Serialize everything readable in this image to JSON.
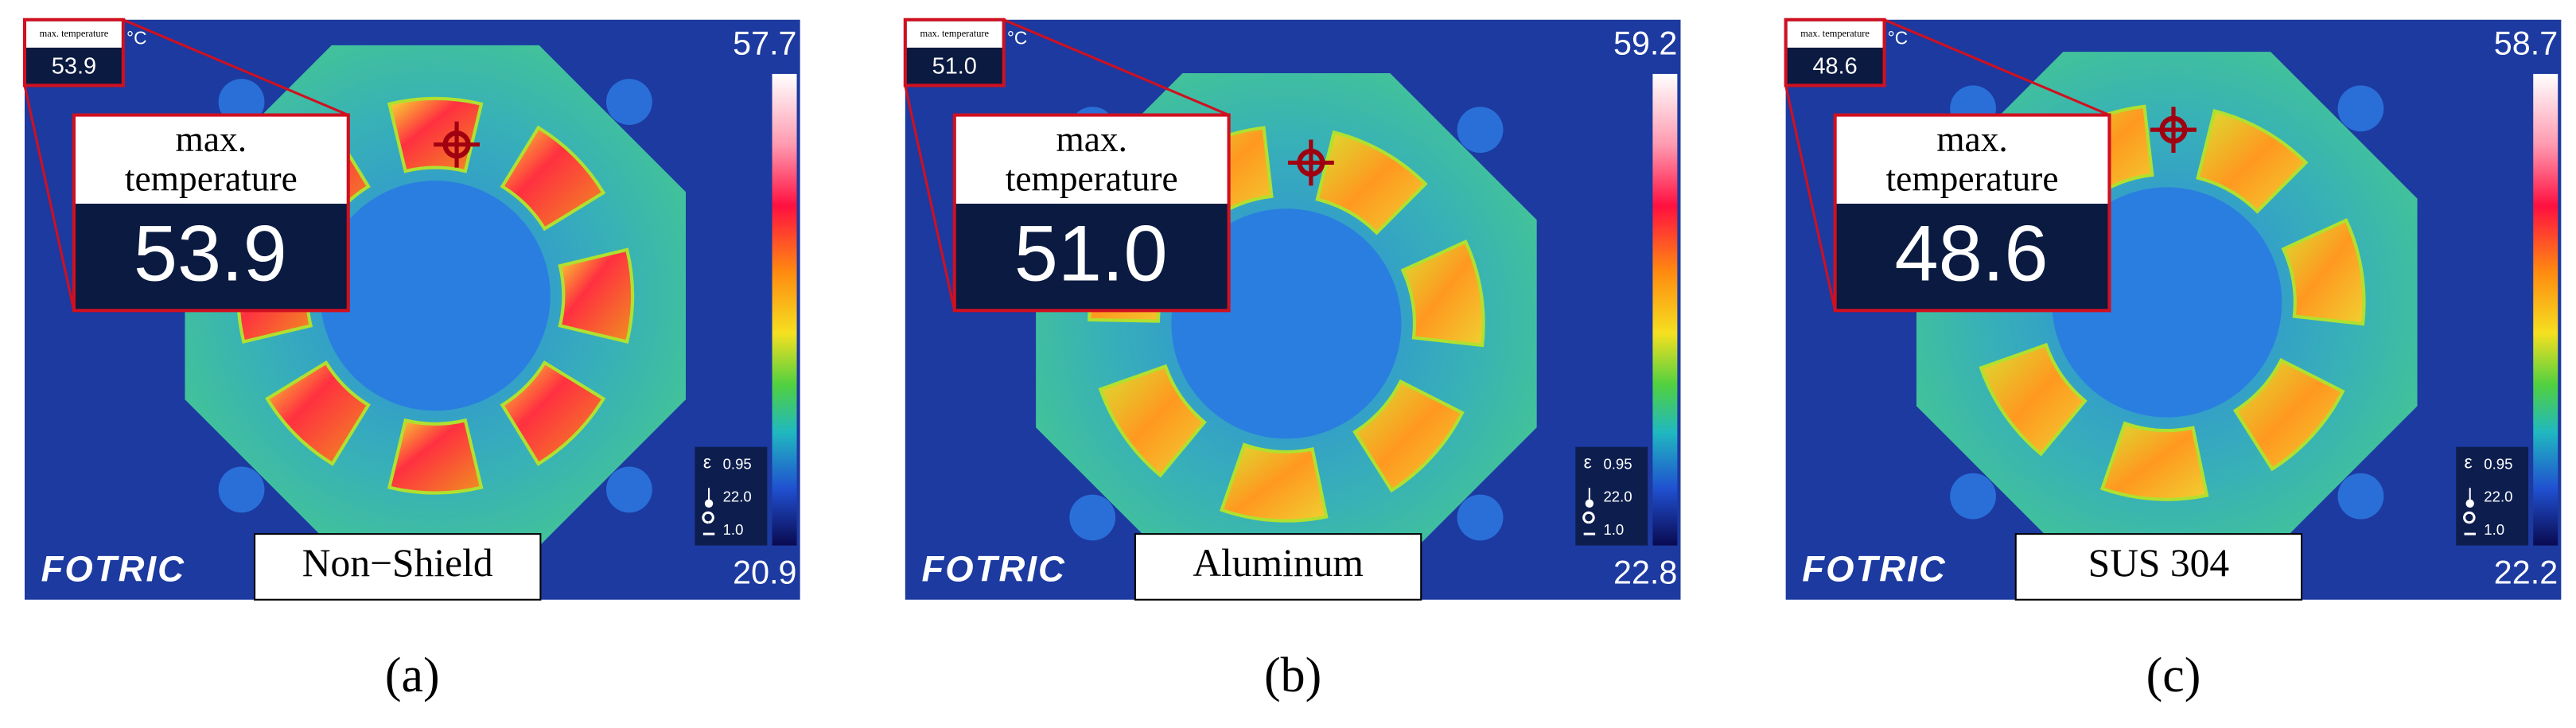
{
  "panels": [
    {
      "max_title": "max. temperature",
      "max_value": "53.9",
      "unit": "°C",
      "scale_max": "57.7",
      "scale_min": "20.9",
      "emissivity_symbol": "ε",
      "emissivity": "0.95",
      "ambient": "22.0",
      "distance": "1.0",
      "logo": "FOTRIC",
      "material": "Non−Shield",
      "caption": "(a)"
    },
    {
      "max_title": "max. temperature",
      "max_value": "51.0",
      "unit": "°C",
      "scale_max": "59.2",
      "scale_min": "22.8",
      "emissivity_symbol": "ε",
      "emissivity": "0.95",
      "ambient": "22.0",
      "distance": "1.0",
      "logo": "FOTRIC",
      "material": "Aluminum",
      "caption": "(b)"
    },
    {
      "max_title": "max. temperature",
      "max_value": "48.6",
      "unit": "°C",
      "scale_max": "58.7",
      "scale_min": "22.2",
      "emissivity_symbol": "ε",
      "emissivity": "0.95",
      "ambient": "22.0",
      "distance": "1.0",
      "logo": "FOTRIC",
      "material": "SUS 304",
      "caption": "(c)"
    }
  ]
}
